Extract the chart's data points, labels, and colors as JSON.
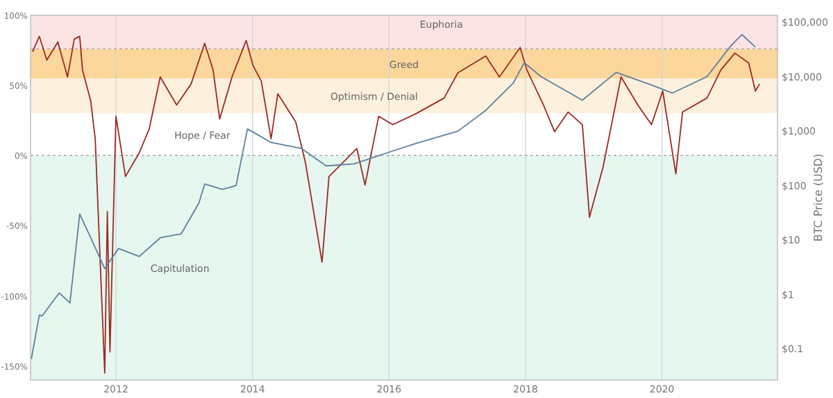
{
  "chart_data": {
    "type": "line",
    "y2label": "BTC Price (USD)",
    "xlim": [
      "2010-10-01",
      "2021-09-10"
    ],
    "xticks": [
      {
        "value": "2012-01-01",
        "label": "2012"
      },
      {
        "value": "2014-01-01",
        "label": "2014"
      },
      {
        "value": "2016-01-01",
        "label": "2016"
      },
      {
        "value": "2018-01-01",
        "label": "2018"
      },
      {
        "value": "2020-01-01",
        "label": "2020"
      }
    ],
    "ylim": [
      -160,
      100
    ],
    "yticks": [
      {
        "value": 100,
        "label": "100%"
      },
      {
        "value": 50,
        "label": "50%"
      },
      {
        "value": 0,
        "label": "0%"
      },
      {
        "value": -50,
        "label": "-50%"
      },
      {
        "value": -100,
        "label": "-100%"
      },
      {
        "value": -150,
        "label": "-150%"
      }
    ],
    "y2lim": [
      0.027,
      134000
    ],
    "y2ticks": [
      {
        "value": 100000,
        "label": "$100,000"
      },
      {
        "value": 10000,
        "label": "$10,000"
      },
      {
        "value": 1000,
        "label": "$1,000"
      },
      {
        "value": 100,
        "label": "$100"
      },
      {
        "value": 10,
        "label": "$10"
      },
      {
        "value": 1,
        "label": "$1"
      },
      {
        "value": 0.1,
        "label": "$0.1"
      }
    ],
    "log": "y2",
    "grid": "x",
    "line_style": "solid",
    "marker": "none",
    "bands": [
      {
        "axis": "y",
        "from": 76,
        "to": 100,
        "label": "Euphoria",
        "color": "#fde4e4"
      },
      {
        "axis": "y",
        "from": 55,
        "to": 76,
        "label": "Greed",
        "color": "#fcd79c"
      },
      {
        "axis": "y",
        "from": 30,
        "to": 55,
        "label": "Optimism / Denial",
        "color": "#fdf0dc"
      },
      {
        "axis": "y",
        "from": 0,
        "to": 30,
        "label": "Hope / Fear",
        "color": "#ffffff"
      },
      {
        "axis": "y",
        "from": -160,
        "to": 0,
        "label": "Capitulation",
        "color": "#e6f7ef"
      }
    ],
    "ref_lines": [
      {
        "axis": "y",
        "value": 0,
        "line_style": "dotted",
        "color": "#aaaaaa"
      },
      {
        "axis": "y",
        "value": 76,
        "line_style": "dotted",
        "color": "#aaaaaa"
      }
    ],
    "series": [
      {
        "color": "#9b2a22",
        "x": [
          "2010-10-12",
          "2010-11-17",
          "2010-12-27",
          "2011-02-24",
          "2011-04-17",
          "2011-05-23",
          "2011-06-21",
          "2011-07-06",
          "2011-08-19",
          "2011-09-12",
          "2011-11-02",
          "2011-11-16",
          "2011-11-30",
          "2012-01-01",
          "2012-02-21",
          "2012-05-05",
          "2012-06-27",
          "2012-08-25",
          "2012-11-21",
          "2013-02-06",
          "2013-04-20",
          "2013-06-04",
          "2013-07-09",
          "2013-09-13",
          "2013-11-28",
          "2014-01-04",
          "2014-02-17",
          "2014-04-10",
          "2014-05-16",
          "2014-08-20",
          "2014-10-11",
          "2015-01-08",
          "2015-02-14",
          "2015-07-13",
          "2015-08-26",
          "2015-11-07",
          "2016-01-22",
          "2016-05-27",
          "2016-10-22",
          "2017-01-04",
          "2017-06-02",
          "2017-08-14",
          "2017-12-03",
          "2018-01-08",
          "2018-04-07",
          "2018-06-05",
          "2018-08-17",
          "2018-11-01",
          "2018-12-09",
          "2019-02-20",
          "2019-05-27",
          "2019-08-25",
          "2019-11-06",
          "2020-01-05",
          "2020-03-15",
          "2020-04-20",
          "2020-08-29",
          "2020-11-11",
          "2021-01-25",
          "2021-04-09",
          "2021-05-15",
          "2021-06-06"
        ],
        "values": [
          74,
          85,
          68,
          81,
          56,
          83,
          85,
          61,
          39,
          12,
          -155,
          -40,
          -140,
          28,
          -15,
          2,
          19,
          56,
          36,
          51,
          80,
          61,
          26,
          56,
          82,
          64,
          53,
          12,
          44,
          24,
          -5,
          -76,
          -15,
          5,
          -21,
          28,
          22,
          30,
          41,
          59,
          71,
          56,
          77,
          61,
          36,
          17,
          31,
          22,
          -44,
          -8,
          56,
          36,
          22,
          46,
          -13,
          31,
          41,
          61,
          73,
          66,
          46,
          51
        ]
      },
      {
        "color": "#5f7f9f",
        "axis": "y2",
        "x": [
          "2010-10-05",
          "2010-11-17",
          "2010-12-01",
          "2011-03-03",
          "2011-04-30",
          "2011-06-21",
          "2011-08-19",
          "2011-11-02",
          "2012-01-15",
          "2012-05-05",
          "2012-08-25",
          "2012-12-15",
          "2013-03-20",
          "2013-04-20",
          "2013-07-24",
          "2013-10-05",
          "2013-12-05",
          "2014-04-10",
          "2014-09-20",
          "2015-01-30",
          "2015-06-28",
          "2016-01-01",
          "2016-05-27",
          "2017-01-04",
          "2017-06-02",
          "2017-10-27",
          "2017-12-25",
          "2018-03-25",
          "2018-11-01",
          "2019-05-01",
          "2019-11-06",
          "2020-02-25",
          "2020-08-29",
          "2021-01-04",
          "2021-03-04",
          "2021-05-15"
        ],
        "values": [
          0.065,
          0.42,
          0.4,
          1.07,
          0.7,
          30,
          11,
          3,
          7,
          5,
          11,
          13,
          48,
          107,
          85,
          100,
          1100,
          620,
          480,
          230,
          250,
          410,
          600,
          1000,
          2400,
          7600,
          18000,
          10000,
          3700,
          12000,
          7000,
          5000,
          10000,
          37000,
          59000,
          35000
        ]
      }
    ]
  }
}
